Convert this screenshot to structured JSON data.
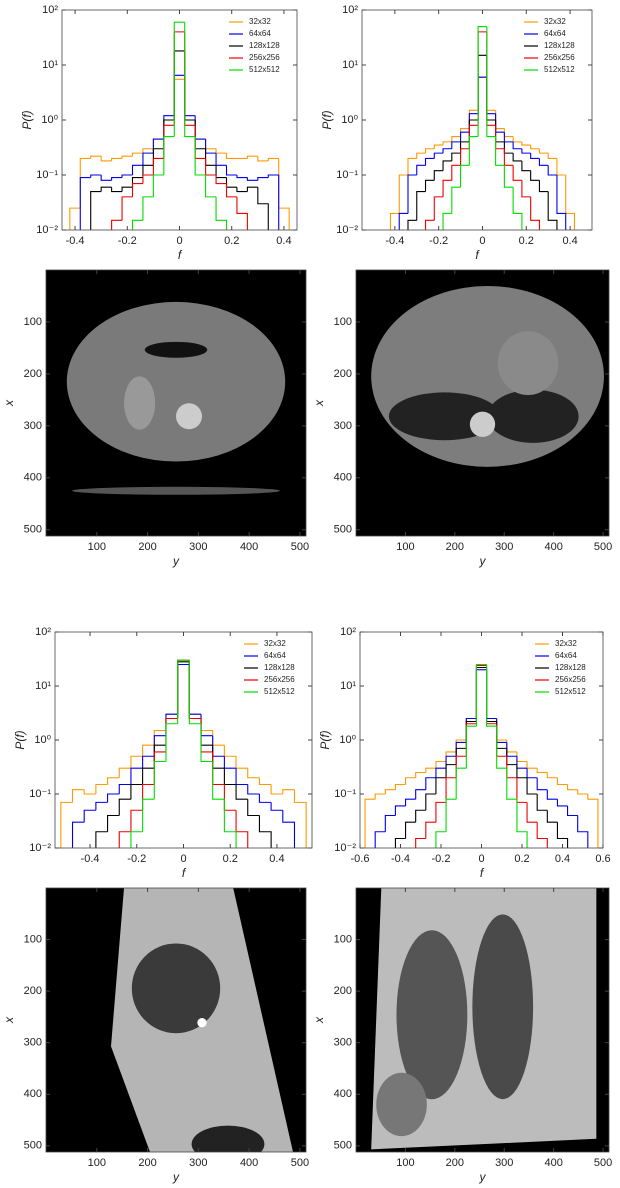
{
  "chart_data": [
    {
      "type": "histogram",
      "x_label": "f",
      "y_label": "P(f)",
      "ylog": true,
      "legend": "upper right",
      "xlim": [
        -0.45,
        0.45
      ],
      "xticks": [
        -0.4,
        -0.2,
        0.0,
        0.2,
        0.4
      ],
      "ylim": [
        0.01,
        100
      ],
      "yticks": [
        {
          "value": 0.01,
          "label": "10⁻²"
        },
        {
          "value": 0.1,
          "label": "10⁻¹"
        },
        {
          "value": 1,
          "label": "10⁰"
        },
        {
          "value": 10,
          "label": "10¹"
        },
        {
          "value": 100,
          "label": "10²"
        }
      ],
      "bins": [
        -0.42,
        -0.38,
        -0.34,
        -0.3,
        -0.26,
        -0.22,
        -0.18,
        -0.14,
        -0.1,
        -0.06,
        -0.02,
        0.02,
        0.06,
        0.1,
        0.14,
        0.18,
        0.22,
        0.26,
        0.3,
        0.34,
        0.38,
        0.42
      ],
      "series": [
        {
          "name": "32x32",
          "color": "#ff9900",
          "values": [
            0.025,
            0.2,
            0.22,
            0.18,
            0.2,
            0.22,
            0.25,
            0.3,
            0.45,
            1.0,
            5.5,
            1.0,
            0.45,
            0.3,
            0.25,
            0.2,
            0.2,
            0.22,
            0.18,
            0.2,
            0.025
          ]
        },
        {
          "name": "64x64",
          "color": "#0000ee",
          "values": [
            null,
            0.09,
            0.1,
            0.08,
            0.09,
            0.1,
            0.15,
            0.25,
            0.45,
            1.2,
            6.5,
            1.2,
            0.45,
            0.25,
            0.15,
            0.1,
            0.09,
            0.08,
            0.09,
            0.1,
            null
          ]
        },
        {
          "name": "128x128",
          "color": "#000000",
          "values": [
            null,
            null,
            0.05,
            0.06,
            0.05,
            0.06,
            0.09,
            0.15,
            0.3,
            1.0,
            18,
            1.0,
            0.3,
            0.15,
            0.09,
            0.06,
            0.05,
            0.06,
            0.03,
            null,
            null
          ]
        },
        {
          "name": "256x256",
          "color": "#ee0000",
          "values": [
            null,
            null,
            null,
            null,
            0.015,
            0.04,
            0.07,
            0.1,
            0.2,
            0.8,
            40,
            0.8,
            0.2,
            0.1,
            0.07,
            0.04,
            0.02,
            null,
            null,
            null,
            null
          ]
        },
        {
          "name": "512x512",
          "color": "#00dd00",
          "values": [
            null,
            null,
            null,
            null,
            null,
            null,
            0.015,
            0.04,
            0.1,
            0.5,
            60,
            0.5,
            0.1,
            0.04,
            0.015,
            null,
            null,
            null,
            null,
            null,
            null
          ]
        }
      ]
    },
    {
      "type": "histogram",
      "x_label": "f",
      "y_label": "P(f)",
      "ylog": true,
      "legend": "upper right",
      "xlim": [
        -0.55,
        0.5
      ],
      "xticks": [
        -0.4,
        -0.2,
        0.0,
        0.2,
        0.4
      ],
      "ylim": [
        0.01,
        100
      ],
      "yticks": [
        {
          "value": 0.01,
          "label": "10⁻²"
        },
        {
          "value": 0.1,
          "label": "10⁻¹"
        },
        {
          "value": 1,
          "label": "10⁰"
        },
        {
          "value": 10,
          "label": "10¹"
        },
        {
          "value": 100,
          "label": "10²"
        }
      ],
      "bins": [
        -0.42,
        -0.38,
        -0.34,
        -0.3,
        -0.26,
        -0.22,
        -0.18,
        -0.14,
        -0.1,
        -0.06,
        -0.02,
        0.02,
        0.06,
        0.1,
        0.14,
        0.18,
        0.22,
        0.26,
        0.3,
        0.34,
        0.38,
        0.42
      ],
      "series": [
        {
          "name": "32x32",
          "color": "#ff9900",
          "values": [
            0.02,
            0.1,
            0.2,
            0.25,
            0.3,
            0.35,
            0.4,
            0.5,
            0.7,
            1.5,
            6,
            1.5,
            0.7,
            0.5,
            0.4,
            0.35,
            0.3,
            0.25,
            0.2,
            0.1,
            0.02
          ]
        },
        {
          "name": "64x64",
          "color": "#0000ee",
          "values": [
            null,
            0.02,
            0.1,
            0.15,
            0.2,
            0.25,
            0.3,
            0.4,
            0.6,
            1.3,
            6,
            1.3,
            0.6,
            0.4,
            0.3,
            0.25,
            0.2,
            0.15,
            0.1,
            0.02,
            null
          ]
        },
        {
          "name": "128x128",
          "color": "#000000",
          "values": [
            null,
            null,
            0.015,
            0.05,
            0.08,
            0.12,
            0.18,
            0.25,
            0.4,
            1.0,
            15,
            1.0,
            0.4,
            0.25,
            0.18,
            0.12,
            0.08,
            0.05,
            0.015,
            null,
            null
          ]
        },
        {
          "name": "256x256",
          "color": "#ee0000",
          "values": [
            null,
            null,
            null,
            null,
            0.015,
            0.04,
            0.08,
            0.15,
            0.3,
            0.8,
            40,
            0.8,
            0.3,
            0.15,
            0.08,
            0.04,
            0.015,
            null,
            null,
            null,
            null
          ]
        },
        {
          "name": "512x512",
          "color": "#00dd00",
          "values": [
            null,
            null,
            null,
            null,
            null,
            null,
            0.02,
            0.06,
            0.15,
            0.5,
            50,
            0.5,
            0.15,
            0.06,
            0.02,
            null,
            null,
            null,
            null,
            null,
            null
          ]
        }
      ]
    },
    {
      "type": "image",
      "x_label": "y",
      "y_label": "x",
      "xlim": [
        0,
        512
      ],
      "xticks": [
        100,
        200,
        300,
        400,
        500
      ],
      "ylim": [
        512,
        0
      ],
      "yticks": [
        100,
        200,
        300,
        400,
        500
      ]
    },
    {
      "type": "image",
      "x_label": "y",
      "y_label": "x",
      "xlim": [
        0,
        512
      ],
      "xticks": [
        100,
        200,
        300,
        400,
        500
      ],
      "ylim": [
        512,
        0
      ],
      "yticks": [
        100,
        200,
        300,
        400,
        500
      ]
    },
    {
      "type": "histogram",
      "x_label": "f",
      "y_label": "P(f)",
      "ylog": true,
      "legend": "upper right",
      "xlim": [
        -0.55,
        0.55
      ],
      "xticks": [
        -0.4,
        -0.2,
        0.0,
        0.2,
        0.4
      ],
      "ylim": [
        0.01,
        100
      ],
      "yticks": [
        {
          "value": 0.01,
          "label": "10⁻²"
        },
        {
          "value": 0.1,
          "label": "10⁻¹"
        },
        {
          "value": 1,
          "label": "10⁰"
        },
        {
          "value": 10,
          "label": "10¹"
        },
        {
          "value": 100,
          "label": "10²"
        }
      ],
      "bins": [
        -0.525,
        -0.475,
        -0.425,
        -0.375,
        -0.325,
        -0.275,
        -0.225,
        -0.175,
        -0.125,
        -0.075,
        -0.025,
        0.025,
        0.075,
        0.125,
        0.175,
        0.225,
        0.275,
        0.325,
        0.375,
        0.425,
        0.475,
        0.525
      ],
      "series": [
        {
          "name": "32x32",
          "color": "#ff9900",
          "values": [
            0.07,
            0.12,
            0.1,
            0.15,
            0.2,
            0.3,
            0.5,
            0.8,
            1.5,
            3,
            25,
            3,
            1.5,
            0.8,
            0.5,
            0.3,
            0.2,
            0.15,
            0.1,
            0.12,
            0.07
          ]
        },
        {
          "name": "64x64",
          "color": "#0000ee",
          "values": [
            null,
            0.03,
            0.05,
            0.07,
            0.1,
            0.15,
            0.3,
            0.5,
            1.2,
            3,
            25,
            3,
            1.2,
            0.5,
            0.3,
            0.15,
            0.1,
            0.07,
            0.05,
            0.03,
            null
          ]
        },
        {
          "name": "128x128",
          "color": "#000000",
          "values": [
            null,
            null,
            null,
            0.02,
            0.04,
            0.08,
            0.15,
            0.3,
            0.8,
            2.5,
            28,
            2.5,
            0.8,
            0.3,
            0.15,
            0.08,
            0.04,
            0.02,
            null,
            null,
            null
          ]
        },
        {
          "name": "256x256",
          "color": "#ee0000",
          "values": [
            null,
            null,
            null,
            null,
            null,
            0.02,
            0.05,
            0.15,
            0.6,
            2.5,
            30,
            2.5,
            0.6,
            0.15,
            0.05,
            0.02,
            null,
            null,
            null,
            null,
            null
          ]
        },
        {
          "name": "512x512",
          "color": "#00dd00",
          "values": [
            null,
            null,
            null,
            null,
            null,
            null,
            0.02,
            0.08,
            0.4,
            2,
            30,
            2,
            0.4,
            0.08,
            0.02,
            null,
            null,
            null,
            null,
            null,
            null
          ]
        }
      ]
    },
    {
      "type": "histogram",
      "x_label": "f",
      "y_label": "P(f)",
      "ylog": true,
      "legend": "upper right",
      "xlim": [
        -0.6,
        0.6
      ],
      "xticks": [
        -0.6,
        -0.4,
        -0.2,
        0.0,
        0.2,
        0.4,
        0.6
      ],
      "ylim": [
        0.01,
        100
      ],
      "yticks": [
        {
          "value": 0.01,
          "label": "10⁻²"
        },
        {
          "value": 0.1,
          "label": "10⁻¹"
        },
        {
          "value": 1,
          "label": "10⁰"
        },
        {
          "value": 10,
          "label": "10¹"
        },
        {
          "value": 100,
          "label": "10²"
        }
      ],
      "bins": [
        -0.575,
        -0.525,
        -0.475,
        -0.425,
        -0.375,
        -0.325,
        -0.275,
        -0.225,
        -0.175,
        -0.125,
        -0.075,
        -0.025,
        0.025,
        0.075,
        0.125,
        0.175,
        0.225,
        0.275,
        0.325,
        0.375,
        0.425,
        0.475,
        0.525,
        0.575
      ],
      "series": [
        {
          "name": "32x32",
          "color": "#ff9900",
          "values": [
            0.08,
            0.1,
            0.12,
            0.15,
            0.2,
            0.25,
            0.3,
            0.4,
            0.6,
            1,
            2.5,
            20,
            2.5,
            1,
            0.6,
            0.4,
            0.3,
            0.25,
            0.2,
            0.15,
            0.12,
            0.1,
            0.08
          ]
        },
        {
          "name": "64x64",
          "color": "#0000ee",
          "values": [
            null,
            0.02,
            0.04,
            0.06,
            0.08,
            0.12,
            0.2,
            0.3,
            0.5,
            0.9,
            2.5,
            20,
            2.5,
            0.9,
            0.5,
            0.3,
            0.2,
            0.12,
            0.08,
            0.06,
            0.04,
            0.02,
            null
          ]
        },
        {
          "name": "128x128",
          "color": "#000000",
          "values": [
            null,
            null,
            null,
            0.015,
            0.03,
            0.05,
            0.1,
            0.2,
            0.35,
            0.7,
            2.2,
            22,
            2.2,
            0.7,
            0.35,
            0.2,
            0.1,
            0.05,
            0.03,
            0.015,
            null,
            null,
            null
          ]
        },
        {
          "name": "256x256",
          "color": "#ee0000",
          "values": [
            null,
            null,
            null,
            null,
            null,
            0.015,
            0.03,
            0.07,
            0.2,
            0.5,
            2,
            24,
            2,
            0.5,
            0.2,
            0.07,
            0.03,
            0.015,
            null,
            null,
            null,
            null,
            null
          ]
        },
        {
          "name": "512x512",
          "color": "#00dd00",
          "values": [
            null,
            null,
            null,
            null,
            null,
            null,
            null,
            0.02,
            0.08,
            0.3,
            1.8,
            25,
            1.8,
            0.3,
            0.08,
            0.02,
            null,
            null,
            null,
            null,
            null,
            null,
            null
          ]
        }
      ]
    },
    {
      "type": "image",
      "x_label": "y",
      "y_label": "x",
      "xlim": [
        0,
        512
      ],
      "xticks": [
        100,
        200,
        300,
        400,
        500
      ],
      "ylim": [
        512,
        0
      ],
      "yticks": [
        100,
        200,
        300,
        400,
        500
      ]
    },
    {
      "type": "image",
      "x_label": "y",
      "y_label": "x",
      "xlim": [
        0,
        512
      ],
      "xticks": [
        100,
        200,
        300,
        400,
        500
      ],
      "ylim": [
        512,
        0
      ],
      "yticks": [
        100,
        200,
        300,
        400,
        500
      ]
    }
  ]
}
